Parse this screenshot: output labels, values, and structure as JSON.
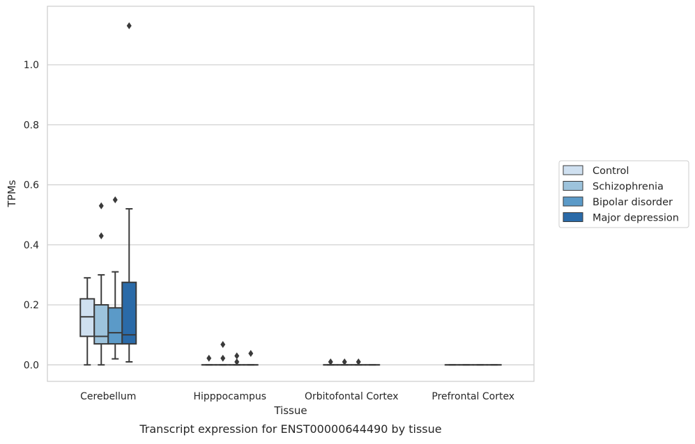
{
  "chart_data": {
    "type": "box",
    "xlabel": "Tissue",
    "ylabel": "TPMs",
    "caption": "Transcript expression for ENST00000644490 by tissue",
    "categories": [
      "Cerebellum",
      "Hipppocampus",
      "Orbitofontal Cortex",
      "Prefrontal Cortex"
    ],
    "ylim": [
      -0.055,
      1.195
    ],
    "yticks": [
      "0.0",
      "0.2",
      "0.4",
      "0.6",
      "0.8",
      "1.0"
    ],
    "grid": "horizontal",
    "legend_position": "right",
    "series": [
      {
        "name": "Control",
        "color": "#cfe0f0",
        "boxes": [
          {
            "whisker_low": 0.0,
            "q1": 0.095,
            "median": 0.16,
            "q3": 0.22,
            "whisker_high": 0.29,
            "outliers": []
          },
          {
            "whisker_low": 0.0,
            "q1": 0.0,
            "median": 0.0,
            "q3": 0.0,
            "whisker_high": 0.0,
            "outliers": [
              0.022
            ]
          },
          {
            "whisker_low": 0.0,
            "q1": 0.0,
            "median": 0.0,
            "q3": 0.0,
            "whisker_high": 0.0,
            "outliers": [
              0.01
            ]
          },
          {
            "whisker_low": 0.0,
            "q1": 0.0,
            "median": 0.0,
            "q3": 0.0,
            "whisker_high": 0.0,
            "outliers": []
          }
        ]
      },
      {
        "name": "Schizophrenia",
        "color": "#9dc3dc",
        "boxes": [
          {
            "whisker_low": 0.0,
            "q1": 0.07,
            "median": 0.095,
            "q3": 0.2,
            "whisker_high": 0.3,
            "outliers": [
              0.43,
              0.53
            ]
          },
          {
            "whisker_low": 0.0,
            "q1": 0.0,
            "median": 0.0,
            "q3": 0.0,
            "whisker_high": 0.0,
            "outliers": [
              0.022,
              0.068
            ]
          },
          {
            "whisker_low": 0.0,
            "q1": 0.0,
            "median": 0.0,
            "q3": 0.0,
            "whisker_high": 0.0,
            "outliers": [
              0.01
            ]
          },
          {
            "whisker_low": 0.0,
            "q1": 0.0,
            "median": 0.0,
            "q3": 0.0,
            "whisker_high": 0.0,
            "outliers": []
          }
        ]
      },
      {
        "name": "Bipolar disorder",
        "color": "#5b9ac8",
        "boxes": [
          {
            "whisker_low": 0.02,
            "q1": 0.07,
            "median": 0.107,
            "q3": 0.19,
            "whisker_high": 0.31,
            "outliers": [
              0.55
            ]
          },
          {
            "whisker_low": 0.0,
            "q1": 0.0,
            "median": 0.0,
            "q3": 0.0,
            "whisker_high": 0.0,
            "outliers": [
              0.01,
              0.03
            ]
          },
          {
            "whisker_low": 0.0,
            "q1": 0.0,
            "median": 0.0,
            "q3": 0.0,
            "whisker_high": 0.0,
            "outliers": [
              0.01
            ]
          },
          {
            "whisker_low": 0.0,
            "q1": 0.0,
            "median": 0.0,
            "q3": 0.0,
            "whisker_high": 0.0,
            "outliers": []
          }
        ]
      },
      {
        "name": "Major depression",
        "color": "#2a6aa8",
        "boxes": [
          {
            "whisker_low": 0.01,
            "q1": 0.07,
            "median": 0.1,
            "q3": 0.275,
            "whisker_high": 0.52,
            "outliers": [
              1.13
            ]
          },
          {
            "whisker_low": 0.0,
            "q1": 0.0,
            "median": 0.0,
            "q3": 0.0,
            "whisker_high": 0.0,
            "outliers": [
              0.038
            ]
          },
          {
            "whisker_low": 0.0,
            "q1": 0.0,
            "median": 0.0,
            "q3": 0.0,
            "whisker_high": 0.0,
            "outliers": []
          },
          {
            "whisker_low": 0.0,
            "q1": 0.0,
            "median": 0.0,
            "q3": 0.0,
            "whisker_high": 0.0,
            "outliers": []
          }
        ]
      }
    ],
    "colors": {
      "box_edge": "#3a3a3a",
      "grid": "#cccccc",
      "frame": "#cccccc",
      "text": "#262626"
    }
  }
}
